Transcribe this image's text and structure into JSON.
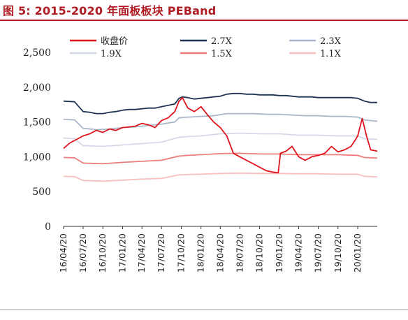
{
  "figure_title": "图 5:  2015-2020 年面板板块 PEBand",
  "chart_data": {
    "type": "line",
    "title": "图 5:  2015-2020 年面板板块 PEBand",
    "xlabel": "",
    "ylabel": "",
    "ylim": [
      0,
      2500
    ],
    "yticks": [
      0,
      500,
      1000,
      1500,
      2000,
      2500
    ],
    "ytick_labels": [
      "0",
      "500",
      "1,000",
      "1,500",
      "2,000",
      "2,500"
    ],
    "xlim": [
      "2016-04-20",
      "2020-04-20"
    ],
    "xticks": [
      "2016-04-20",
      "2016-07-20",
      "2016-10-20",
      "2017-01-20",
      "2017-04-20",
      "2017-07-20",
      "2017-10-20",
      "2018-01-20",
      "2018-04-20",
      "2018-07-20",
      "2018-10-20",
      "2019-01-20",
      "2019-04-20",
      "2019-07-20",
      "2019-10-20",
      "2020-01-20"
    ],
    "xtick_labels": [
      "16/04/20",
      "16/07/20",
      "16/10/20",
      "17/01/20",
      "17/04/20",
      "17/07/20",
      "17/10/20",
      "18/01/20",
      "18/04/20",
      "18/07/20",
      "18/10/20",
      "19/01/20",
      "19/04/20",
      "19/07/20",
      "19/10/20",
      "20/01/20"
    ],
    "grid": false,
    "legend_position": "top",
    "series": [
      {
        "name": "收盘价",
        "color": "#e0141e",
        "x": [
          "2016-04-20",
          "2016-05-20",
          "2016-06-20",
          "2016-07-20",
          "2016-08-20",
          "2016-09-20",
          "2016-10-20",
          "2016-11-20",
          "2016-12-20",
          "2017-01-20",
          "2017-02-20",
          "2017-03-20",
          "2017-04-20",
          "2017-05-20",
          "2017-06-20",
          "2017-07-20",
          "2017-08-20",
          "2017-09-20",
          "2017-10-10",
          "2017-10-25",
          "2017-11-20",
          "2017-12-20",
          "2018-01-20",
          "2018-02-20",
          "2018-03-20",
          "2018-04-20",
          "2018-05-20",
          "2018-06-20",
          "2018-07-20",
          "2018-08-20",
          "2018-09-20",
          "2018-10-20",
          "2018-11-20",
          "2018-12-20",
          "2019-01-15",
          "2019-01-25",
          "2019-02-20",
          "2019-03-20",
          "2019-04-20",
          "2019-05-20",
          "2019-06-20",
          "2019-07-20",
          "2019-08-20",
          "2019-09-20",
          "2019-10-20",
          "2019-11-20",
          "2019-12-20",
          "2020-01-10",
          "2020-01-20",
          "2020-02-10",
          "2020-03-01",
          "2020-03-20",
          "2020-04-20"
        ],
        "y": [
          1120,
          1200,
          1250,
          1300,
          1330,
          1380,
          1350,
          1400,
          1380,
          1420,
          1430,
          1440,
          1480,
          1460,
          1420,
          1520,
          1560,
          1650,
          1800,
          1850,
          1700,
          1650,
          1720,
          1600,
          1500,
          1420,
          1300,
          1050,
          1000,
          950,
          900,
          850,
          800,
          780,
          770,
          1050,
          1080,
          1150,
          1000,
          950,
          1000,
          1020,
          1050,
          1150,
          1070,
          1100,
          1150,
          1250,
          1300,
          1550,
          1300,
          1100,
          1080
        ]
      },
      {
        "name": "2.7X",
        "color": "#1f3353",
        "x": [
          "2016-04-20",
          "2016-06-10",
          "2016-07-20",
          "2016-08-20",
          "2016-09-20",
          "2016-10-20",
          "2016-11-20",
          "2016-12-20",
          "2017-01-20",
          "2017-02-20",
          "2017-03-20",
          "2017-04-20",
          "2017-05-20",
          "2017-06-20",
          "2017-07-20",
          "2017-08-20",
          "2017-09-20",
          "2017-10-10",
          "2017-10-25",
          "2017-11-20",
          "2017-12-20",
          "2018-01-20",
          "2018-02-20",
          "2018-03-20",
          "2018-04-20",
          "2018-05-20",
          "2018-06-20",
          "2018-07-20",
          "2018-08-20",
          "2018-09-20",
          "2018-10-20",
          "2018-11-20",
          "2018-12-20",
          "2019-01-20",
          "2019-02-20",
          "2019-03-20",
          "2019-04-20",
          "2019-05-20",
          "2019-06-20",
          "2019-07-20",
          "2019-08-20",
          "2019-09-20",
          "2019-10-20",
          "2019-11-20",
          "2019-12-20",
          "2020-01-20",
          "2020-02-20",
          "2020-03-20",
          "2020-04-20"
        ],
        "y": [
          1800,
          1790,
          1650,
          1640,
          1620,
          1620,
          1640,
          1650,
          1670,
          1680,
          1680,
          1690,
          1700,
          1700,
          1720,
          1740,
          1760,
          1840,
          1860,
          1850,
          1830,
          1840,
          1850,
          1860,
          1870,
          1900,
          1910,
          1910,
          1900,
          1900,
          1890,
          1890,
          1890,
          1880,
          1880,
          1870,
          1860,
          1860,
          1860,
          1850,
          1850,
          1850,
          1850,
          1850,
          1850,
          1840,
          1800,
          1780,
          1780
        ]
      },
      {
        "name": "2.3X",
        "color": "#a9b6ca",
        "x": [
          "2016-04-20",
          "2016-06-10",
          "2016-07-20",
          "2016-09-20",
          "2016-11-20",
          "2017-01-20",
          "2017-03-20",
          "2017-05-20",
          "2017-07-20",
          "2017-09-20",
          "2017-10-10",
          "2017-11-20",
          "2018-01-20",
          "2018-03-20",
          "2018-05-20",
          "2018-07-20",
          "2018-09-20",
          "2018-11-20",
          "2019-01-20",
          "2019-03-20",
          "2019-05-20",
          "2019-07-20",
          "2019-09-20",
          "2019-11-20",
          "2020-01-20",
          "2020-02-20",
          "2020-04-20"
        ],
        "y": [
          1540,
          1530,
          1410,
          1390,
          1400,
          1420,
          1430,
          1450,
          1470,
          1500,
          1560,
          1570,
          1580,
          1590,
          1620,
          1620,
          1620,
          1610,
          1610,
          1600,
          1590,
          1590,
          1580,
          1580,
          1570,
          1530,
          1510
        ]
      },
      {
        "name": "1.9X",
        "color": "#d3d9e6",
        "x": [
          "2016-04-20",
          "2016-06-10",
          "2016-07-20",
          "2016-10-20",
          "2017-01-20",
          "2017-04-20",
          "2017-07-20",
          "2017-10-10",
          "2017-11-20",
          "2018-01-20",
          "2018-04-20",
          "2018-07-20",
          "2018-10-20",
          "2019-01-20",
          "2019-04-20",
          "2019-07-20",
          "2019-10-20",
          "2020-01-20",
          "2020-02-20",
          "2020-04-20"
        ],
        "y": [
          1270,
          1260,
          1160,
          1150,
          1170,
          1190,
          1210,
          1280,
          1290,
          1300,
          1330,
          1340,
          1330,
          1330,
          1310,
          1310,
          1300,
          1300,
          1260,
          1250
        ]
      },
      {
        "name": "1.5X",
        "color": "#ec7d7d",
        "x": [
          "2016-04-20",
          "2016-06-10",
          "2016-07-20",
          "2016-10-20",
          "2017-01-20",
          "2017-04-20",
          "2017-07-20",
          "2017-10-10",
          "2017-11-20",
          "2018-01-20",
          "2018-04-20",
          "2018-07-20",
          "2018-10-20",
          "2019-01-20",
          "2019-04-20",
          "2019-07-20",
          "2019-10-20",
          "2020-01-20",
          "2020-02-20",
          "2020-04-20"
        ],
        "y": [
          990,
          985,
          910,
          900,
          920,
          935,
          950,
          1010,
          1020,
          1030,
          1045,
          1050,
          1040,
          1040,
          1030,
          1030,
          1030,
          1020,
          990,
          980
        ]
      },
      {
        "name": "1.1X",
        "color": "#f6c0c0",
        "x": [
          "2016-04-20",
          "2016-06-10",
          "2016-07-20",
          "2016-10-20",
          "2017-01-20",
          "2017-04-20",
          "2017-07-20",
          "2017-10-10",
          "2017-11-20",
          "2018-01-20",
          "2018-04-20",
          "2018-07-20",
          "2018-10-20",
          "2019-01-20",
          "2019-04-20",
          "2019-07-20",
          "2019-10-20",
          "2020-01-20",
          "2020-02-20",
          "2020-04-20"
        ],
        "y": [
          720,
          715,
          660,
          650,
          665,
          680,
          690,
          740,
          745,
          750,
          760,
          765,
          760,
          760,
          755,
          755,
          750,
          750,
          720,
          710
        ]
      }
    ]
  }
}
